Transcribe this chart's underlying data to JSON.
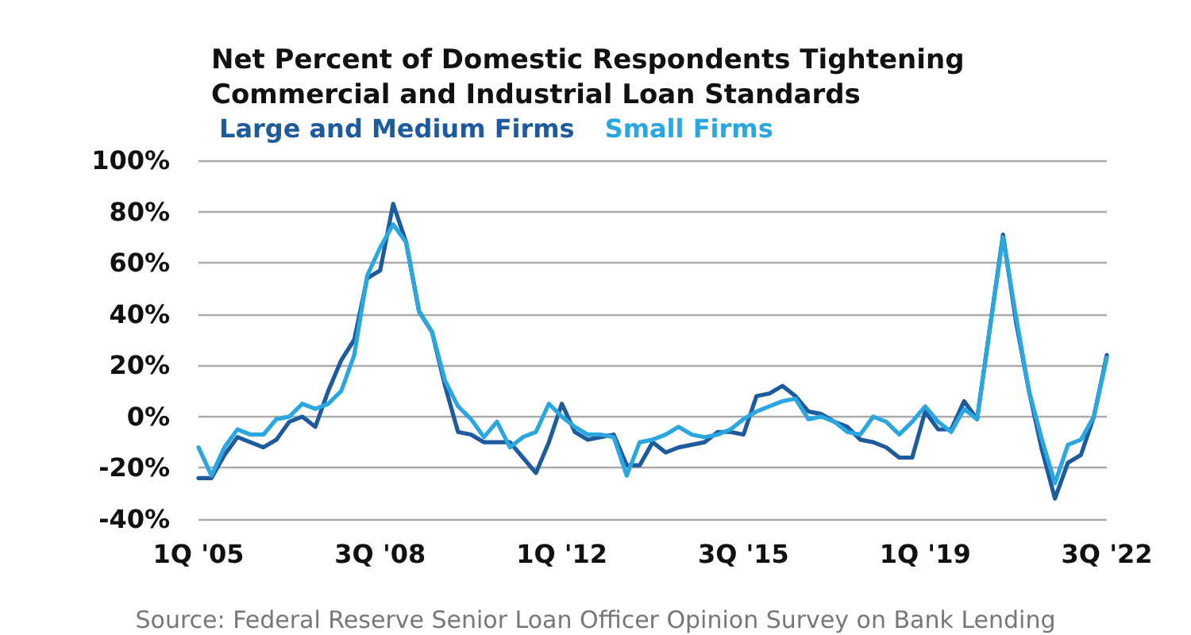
{
  "chart_data": {
    "type": "line",
    "title": "Net Percent of Domestic Respondents Tightening Commercial and Industrial Loan Standards",
    "categories": [
      "1Q '05",
      null,
      null,
      null,
      null,
      null,
      null,
      null,
      null,
      null,
      null,
      null,
      null,
      null,
      "3Q '08",
      null,
      null,
      null,
      null,
      null,
      null,
      null,
      null,
      null,
      null,
      null,
      null,
      null,
      "1Q '12",
      null,
      null,
      null,
      null,
      null,
      null,
      null,
      null,
      null,
      null,
      null,
      null,
      null,
      "3Q '15",
      null,
      null,
      null,
      null,
      null,
      null,
      null,
      null,
      null,
      null,
      null,
      null,
      null,
      "1Q '19",
      null,
      null,
      null,
      null,
      null,
      null,
      null,
      null,
      null,
      null,
      null,
      null,
      null,
      "3Q '22"
    ],
    "series": [
      {
        "name": "Large and Medium Firms",
        "color": "#1e5b9e",
        "values": [
          -24,
          -24,
          -15,
          -8,
          -10,
          -12,
          -9,
          -2,
          0,
          -4,
          10,
          22,
          30,
          54,
          57,
          83,
          68,
          41,
          33,
          12,
          -6,
          -7,
          -10,
          -10,
          -10,
          -16,
          -22,
          -10,
          5,
          -6,
          -9,
          -8,
          -7,
          -19,
          -19,
          -10,
          -14,
          -12,
          -11,
          -10,
          -6,
          -6,
          -7,
          8,
          9,
          12,
          8,
          2,
          1,
          -2,
          -4,
          -9,
          -10,
          -12,
          -16,
          -16,
          2,
          -5,
          -5,
          6,
          -1,
          35,
          71,
          37,
          10,
          -13,
          -32,
          -18,
          -15,
          0,
          24
        ]
      },
      {
        "name": "Small Firms",
        "color": "#2aa6e0",
        "values": [
          -12,
          -23,
          -12,
          -5,
          -7,
          -7,
          -1,
          0,
          5,
          3,
          5,
          10,
          24,
          55,
          66,
          75,
          68,
          41,
          33,
          14,
          4,
          -1,
          -8,
          -2,
          -12,
          -8,
          -6,
          5,
          0,
          -4,
          -7,
          -7,
          -8,
          -23,
          -10,
          -9,
          -7,
          -4,
          -7,
          -8,
          -7,
          -5,
          -1,
          2,
          4,
          6,
          7,
          -1,
          0,
          -2,
          -6,
          -7,
          0,
          -2,
          -7,
          -2,
          4,
          -2,
          -6,
          3,
          -1,
          35,
          70,
          39,
          10,
          -9,
          -26,
          -11,
          -9,
          0,
          23
        ]
      }
    ],
    "ylim": [
      -40,
      100
    ],
    "yticks": [
      {
        "value": -40,
        "label": "-40%"
      },
      {
        "value": -20,
        "label": "-20%"
      },
      {
        "value": 0,
        "label": "0%"
      },
      {
        "value": 20,
        "label": "20%"
      },
      {
        "value": 40,
        "label": "40%"
      },
      {
        "value": 60,
        "label": "60%"
      },
      {
        "value": 80,
        "label": "80%"
      },
      {
        "value": 100,
        "label": "100%"
      }
    ],
    "grid": "y",
    "legend": "top left",
    "marker": "none",
    "line_style": "solid",
    "annotations": [
      "Source: Federal Reserve Senior Loan Officer Opinion Survey on Bank Lending"
    ]
  }
}
